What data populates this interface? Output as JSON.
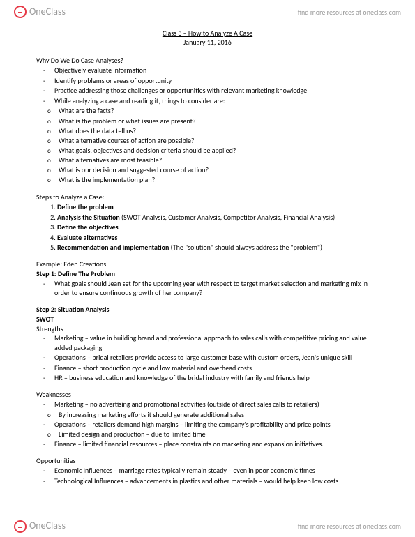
{
  "header": {
    "logo_text": "OneClass",
    "link_text": "find more resources at oneclass.com"
  },
  "title": "Class 3 – How to Analyze A Case",
  "date": "January 11, 2016",
  "why_head": "Why Do We Do Case Analyses?",
  "why_items": [
    "Objectively evaluate information",
    "Identify problems or areas of opportunity",
    "Practice addressing those challenges or opportunities with relevant marketing knowledge",
    "While analyzing a case and reading it, things to consider are:"
  ],
  "why_sub": [
    "What are the facts?",
    "What is the problem or what issues are present?",
    "What does the data tell us?",
    "What alternative courses of action are possible?",
    "What goals, objectives and decision criteria should be applied?",
    "What alternatives are most feasible?",
    "What is our decision and suggested course of action?",
    "What is the implementation plan?"
  ],
  "steps_head": "Steps to Analyze a Case:",
  "steps": [
    {
      "b": "Define the problem",
      "rest": ""
    },
    {
      "b": "Analysis the Situation",
      "rest": " (SWOT Analysis, Customer Analysis, Competitor Analysis, Financial Analysis)"
    },
    {
      "b": "Define the objectives",
      "rest": ""
    },
    {
      "b": "Evaluate alternatives",
      "rest": ""
    },
    {
      "b": "Recommendation and implementation",
      "rest": " (The \"solution\" should always address the \"problem\")"
    }
  ],
  "example_head": "Example: Eden Creations",
  "step1_head": "Step 1: Define The Problem",
  "step1_items": [
    "What goals should Jean set for the upcoming year with respect to target market selection and marketing mix in order to ensure continuous growth of her company?"
  ],
  "step2_head": "Step 2: Situation Analysis",
  "swot_head": "SWOT",
  "strengths_head": "Strengths",
  "strengths": [
    "Marketing – value in building brand and professional approach to sales calls with competitive pricing and value added packaging",
    "Operations – bridal retailers provide access to large customer base with custom orders, Jean's unique skill",
    "Finance – short production cycle and low material and overhead costs",
    "HR – business education and knowledge of the bridal industry with family and friends help"
  ],
  "weaknesses_head": "Weaknesses",
  "weak1": "Marketing – no advertising and promotional activities (outside of direct sales calls to retailers)",
  "weak1_sub": "By increasing marketing efforts it should generate additional sales",
  "weak2": "Operations – retailers demand high margins – limiting the company's profitability and price points",
  "weak2_sub": "Limited design and production – due to limited time",
  "weak3": "Finance – limited financial resources – place constraints on marketing and expansion initiatives.",
  "opps_head": "Opportunities",
  "opps": [
    "Economic Influences – marriage rates typically remain steady – even in poor economic times",
    "Technological Influences – advancements in plastics and other materials – would help keep low costs"
  ]
}
